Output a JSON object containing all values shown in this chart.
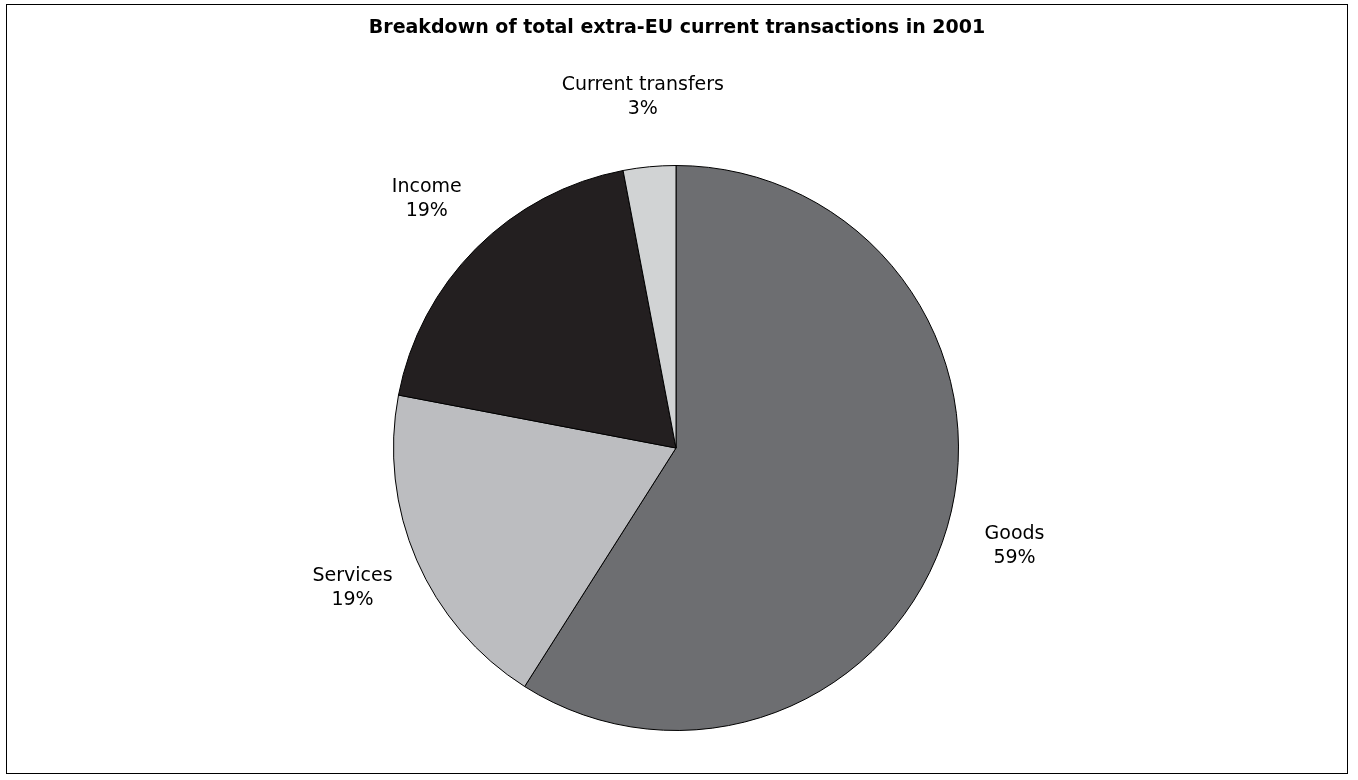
{
  "chart_data": {
    "type": "pie",
    "title": "Breakdown of total extra-EU current transactions in 2001",
    "categories": [
      "Goods",
      "Services",
      "Income",
      "Current transfers"
    ],
    "values": [
      59,
      19,
      19,
      3
    ],
    "colors": [
      "#6d6e71",
      "#bcbdc0",
      "#231f20",
      "#d1d3d4"
    ],
    "value_labels": [
      "59%",
      "19%",
      "19%",
      "3%"
    ],
    "legend": false
  }
}
